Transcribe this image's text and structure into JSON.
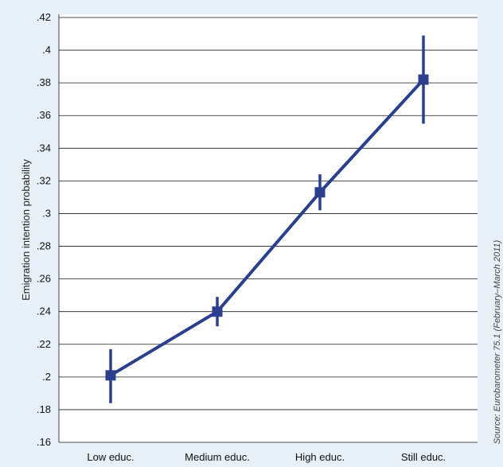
{
  "chart_data": {
    "type": "line",
    "categories": [
      "Low educ.",
      "Medium educ.",
      "High educ.",
      "Still educ."
    ],
    "series": [
      {
        "values": [
          0.201,
          0.24,
          0.313,
          0.382
        ],
        "ci_lower": [
          0.184,
          0.231,
          0.302,
          0.355
        ],
        "ci_upper": [
          0.217,
          0.249,
          0.324,
          0.409
        ]
      }
    ],
    "ylabel": "Emigration intention probability",
    "xlabel": "",
    "ylim": [
      0.16,
      0.42
    ],
    "yticks": [
      0.16,
      0.18,
      0.2,
      0.22,
      0.24,
      0.26,
      0.28,
      0.3,
      0.32,
      0.34,
      0.36,
      0.38,
      0.4,
      0.42
    ],
    "ytick_labels": [
      ".16",
      ".18",
      ".2",
      ".22",
      ".24",
      ".26",
      ".28",
      ".3",
      ".32",
      ".34",
      ".36",
      ".38",
      ".4",
      ".42"
    ],
    "grid": "horizontal",
    "source_note": "Source: Eurobarometer 75.1 (February–March 2011)",
    "colors": {
      "line": "#2b3f8f",
      "grid": "#1a1a1a",
      "background": "#e8f1f8",
      "plot_background": "#ffffff"
    }
  }
}
